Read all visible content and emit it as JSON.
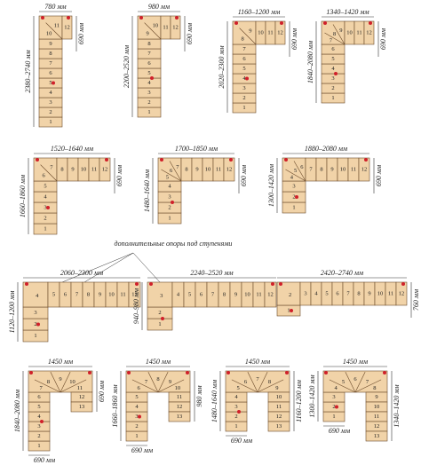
{
  "annotation": "дополнительные опоры под ступенями",
  "stairs": [
    {
      "dims": {
        "top": "780 мм",
        "right": "690 мм",
        "left": "2380–2740 мм"
      },
      "steps": [
        1,
        2,
        3,
        4,
        5,
        6,
        7,
        8,
        9,
        10,
        11,
        12
      ]
    },
    {
      "dims": {
        "top": "980 мм",
        "right": "690 мм",
        "left": "2200–2520 мм"
      },
      "steps": [
        1,
        2,
        3,
        4,
        5,
        6,
        7,
        8,
        9,
        10,
        11,
        12
      ]
    },
    {
      "dims": {
        "top": "1160–1200 мм",
        "right": "690 мм",
        "left": "2020–2300 мм"
      },
      "steps": [
        1,
        2,
        3,
        4,
        5,
        6,
        7,
        8,
        9,
        10,
        11,
        12
      ]
    },
    {
      "dims": {
        "top": "1340–1420 мм",
        "right": "690 мм",
        "left": "1840–2080 мм"
      },
      "steps": [
        1,
        2,
        3,
        4,
        5,
        6,
        7,
        8,
        9,
        10,
        11,
        12
      ]
    },
    {
      "dims": {
        "top": "1520–1640 мм",
        "right": "690 мм",
        "left": "1660–1860 мм"
      },
      "steps": [
        1,
        2,
        3,
        4,
        5,
        6,
        7,
        8,
        9,
        10,
        11,
        12
      ]
    },
    {
      "dims": {
        "top": "1700–1850 мм",
        "right": "690 мм",
        "left": "1480–1640 мм"
      },
      "steps": [
        1,
        2,
        3,
        4,
        5,
        6,
        7,
        8,
        9,
        10,
        11,
        12
      ]
    },
    {
      "dims": {
        "top": "1880–2080 мм",
        "right": "690 мм",
        "left": "1300–1420 мм"
      },
      "steps": [
        1,
        2,
        3,
        4,
        5,
        6,
        7,
        8,
        9,
        10,
        11,
        12
      ]
    },
    {
      "dims": {
        "top": "2060–2300 мм",
        "left": "1120–1200 мм"
      },
      "steps": [
        1,
        2,
        3,
        4,
        5,
        6,
        7,
        8,
        9,
        10,
        11,
        12
      ]
    },
    {
      "dims": {
        "top": "2240–2520 мм",
        "left": "940–980 мм"
      },
      "steps": [
        1,
        2,
        3,
        4,
        5,
        6,
        7,
        8,
        9,
        10,
        11,
        12
      ]
    },
    {
      "dims": {
        "top": "2420–2740 мм",
        "right": "760 мм"
      },
      "steps": [
        1,
        2,
        3,
        4,
        5,
        6,
        7,
        8,
        9,
        10,
        11,
        12
      ]
    },
    {
      "dims": {
        "top": "1450 мм",
        "left": "1840–2080 мм",
        "right": "690 мм",
        "bottom": "690 мм"
      },
      "steps": [
        1,
        2,
        3,
        4,
        5,
        6,
        7,
        8,
        9,
        10,
        11,
        12,
        13
      ]
    },
    {
      "dims": {
        "top": "1450 мм",
        "left": "1660–1860 мм",
        "right": "980 мм",
        "bottom": "690 мм"
      },
      "steps": [
        1,
        2,
        3,
        4,
        5,
        6,
        7,
        8,
        9,
        10,
        11,
        12,
        13
      ]
    },
    {
      "dims": {
        "top": "1450 мм",
        "left": "1480–1640 мм",
        "right": "1160–1200 мм",
        "bottom": "690 мм"
      },
      "steps": [
        1,
        2,
        3,
        4,
        5,
        6,
        7,
        8,
        9,
        10,
        11,
        12,
        13
      ]
    },
    {
      "dims": {
        "top": "1450 мм",
        "left": "1300–1420 мм",
        "right": "1340–1420 мм",
        "bottom": "690 мм"
      },
      "steps": [
        1,
        2,
        3,
        4,
        5,
        6,
        7,
        8,
        9,
        10,
        11,
        12,
        13
      ]
    }
  ]
}
